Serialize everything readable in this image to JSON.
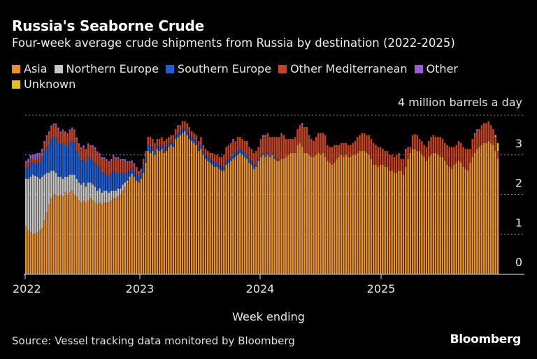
{
  "chart_data": {
    "type": "bar",
    "stacked": true,
    "title": "Russia's Seaborne Crude",
    "subtitle": "Four-week average crude shipments from Russia by destination (2022-2025)",
    "xlabel": "Week ending",
    "ylabel": "4 million barrels a day",
    "ylim": [
      0,
      4
    ],
    "yticks": [
      "0",
      "1",
      "2",
      "3"
    ],
    "xticks": [
      "2022",
      "2023",
      "2024",
      "2025"
    ],
    "grid": true,
    "legend_position": "top-left",
    "series": [
      {
        "name": "Asia",
        "color": "#e8922a",
        "values": [
          1.2,
          1.1,
          1.05,
          1.0,
          1.02,
          1.05,
          1.1,
          1.15,
          1.35,
          1.55,
          1.75,
          1.9,
          2.0,
          2.0,
          1.95,
          2.0,
          1.95,
          2.05,
          2.0,
          2.05,
          2.1,
          2.0,
          1.95,
          1.85,
          1.8,
          1.85,
          1.8,
          1.85,
          1.9,
          1.85,
          1.8,
          1.75,
          1.8,
          1.75,
          1.8,
          1.8,
          1.8,
          1.85,
          1.9,
          1.9,
          1.95,
          2.0,
          2.1,
          2.2,
          2.3,
          2.4,
          2.5,
          2.45,
          2.35,
          2.3,
          2.4,
          2.55,
          2.8,
          3.1,
          3.05,
          3.1,
          3.0,
          3.15,
          3.1,
          3.15,
          3.05,
          3.1,
          3.2,
          3.25,
          3.2,
          3.4,
          3.45,
          3.5,
          3.55,
          3.6,
          3.5,
          3.4,
          3.35,
          3.3,
          3.25,
          3.1,
          3.15,
          3.0,
          2.9,
          2.85,
          2.8,
          2.75,
          2.7,
          2.7,
          2.65,
          2.6,
          2.6,
          2.75,
          2.8,
          2.85,
          2.9,
          2.95,
          3.0,
          3.05,
          3.0,
          2.95,
          2.9,
          2.8,
          2.75,
          2.65,
          2.7,
          2.85,
          2.95,
          3.0,
          2.95,
          3.0,
          2.95,
          3.0,
          2.9,
          2.85,
          2.85,
          2.9,
          2.9,
          2.95,
          3.0,
          3.05,
          3.05,
          3.05,
          3.25,
          3.3,
          3.2,
          3.05,
          3.05,
          3.0,
          2.95,
          2.95,
          3.0,
          3.05,
          3.0,
          3.05,
          2.95,
          2.85,
          2.8,
          2.75,
          2.8,
          2.9,
          2.95,
          3.0,
          2.95,
          3.0,
          2.95,
          2.95,
          3.0,
          3.0,
          3.05,
          3.1,
          3.1,
          3.1,
          3.05,
          3.0,
          2.9,
          2.75,
          2.75,
          2.7,
          2.75,
          2.75,
          2.7,
          2.7,
          2.6,
          2.6,
          2.55,
          2.55,
          2.6,
          2.6,
          2.5,
          2.7,
          2.9,
          3.05,
          3.15,
          3.15,
          3.1,
          3.1,
          3.0,
          2.95,
          2.85,
          2.95,
          3.0,
          3.05,
          3.05,
          3.0,
          2.95,
          2.95,
          2.85,
          2.75,
          2.7,
          2.65,
          2.75,
          2.8,
          2.85,
          2.8,
          2.7,
          2.65,
          2.6,
          2.8,
          2.95,
          3.05,
          3.15,
          3.2,
          3.25,
          3.3,
          3.3,
          3.35,
          3.3,
          3.25,
          3.1,
          2.9
        ]
      },
      {
        "name": "Northern Europe",
        "color": "#c8c8c8",
        "values": [
          1.2,
          1.3,
          1.4,
          1.5,
          1.45,
          1.4,
          1.3,
          1.3,
          1.15,
          1.0,
          0.8,
          0.7,
          0.6,
          0.55,
          0.5,
          0.45,
          0.45,
          0.4,
          0.45,
          0.45,
          0.4,
          0.5,
          0.45,
          0.45,
          0.45,
          0.45,
          0.4,
          0.45,
          0.4,
          0.4,
          0.4,
          0.35,
          0.35,
          0.3,
          0.3,
          0.3,
          0.25,
          0.25,
          0.2,
          0.2,
          0.2,
          0.15,
          0.15,
          0.1,
          0.05,
          0.05,
          0.02,
          0,
          0,
          0,
          0,
          0,
          0,
          0,
          0,
          0,
          0,
          0,
          0,
          0,
          0,
          0,
          0,
          0,
          0,
          0,
          0,
          0,
          0,
          0,
          0,
          0,
          0,
          0,
          0,
          0,
          0,
          0,
          0,
          0,
          0,
          0,
          0,
          0,
          0,
          0,
          0,
          0,
          0,
          0,
          0,
          0,
          0,
          0,
          0,
          0,
          0,
          0,
          0,
          0,
          0,
          0,
          0,
          0,
          0,
          0,
          0,
          0,
          0,
          0,
          0,
          0,
          0,
          0,
          0,
          0,
          0,
          0,
          0,
          0,
          0,
          0,
          0,
          0,
          0,
          0,
          0,
          0,
          0,
          0,
          0,
          0,
          0,
          0,
          0,
          0,
          0,
          0,
          0,
          0,
          0,
          0,
          0,
          0,
          0,
          0,
          0,
          0,
          0,
          0,
          0,
          0,
          0,
          0,
          0,
          0,
          0,
          0,
          0,
          0,
          0,
          0,
          0,
          0,
          0,
          0,
          0,
          0,
          0,
          0,
          0,
          0,
          0,
          0,
          0,
          0,
          0,
          0,
          0,
          0,
          0,
          0,
          0,
          0,
          0,
          0,
          0,
          0,
          0,
          0,
          0,
          0,
          0,
          0,
          0,
          0
        ]
      },
      {
        "name": "Southern Europe",
        "color": "#1a5fd6",
        "values": [
          0.25,
          0.3,
          0.35,
          0.3,
          0.3,
          0.35,
          0.4,
          0.5,
          0.6,
          0.65,
          0.7,
          0.8,
          0.85,
          0.9,
          0.85,
          0.8,
          0.9,
          0.8,
          0.75,
          0.8,
          0.85,
          0.8,
          0.7,
          0.65,
          0.6,
          0.6,
          0.6,
          0.65,
          0.6,
          0.6,
          0.6,
          0.6,
          0.55,
          0.5,
          0.45,
          0.4,
          0.4,
          0.45,
          0.5,
          0.45,
          0.4,
          0.35,
          0.3,
          0.25,
          0.2,
          0.15,
          0.15,
          0.15,
          0.15,
          0.15,
          0.15,
          0.2,
          0.15,
          0.15,
          0.15,
          0.1,
          0.1,
          0.1,
          0.1,
          0.1,
          0.1,
          0.1,
          0.1,
          0.1,
          0.1,
          0.1,
          0.1,
          0.1,
          0.1,
          0.1,
          0.1,
          0.1,
          0.1,
          0.1,
          0.1,
          0.1,
          0.1,
          0.1,
          0.1,
          0.1,
          0.1,
          0.1,
          0.1,
          0.1,
          0.1,
          0.1,
          0.1,
          0.1,
          0.1,
          0.1,
          0.1,
          0.1,
          0.1,
          0.1,
          0.1,
          0.1,
          0.1,
          0.1,
          0.1,
          0.1,
          0.1,
          0.05,
          0.05,
          0.05,
          0.05,
          0.05,
          0.05,
          0.05,
          0.05,
          0.05,
          0,
          0,
          0,
          0,
          0,
          0,
          0,
          0,
          0,
          0,
          0,
          0,
          0,
          0,
          0,
          0,
          0,
          0,
          0,
          0,
          0,
          0,
          0,
          0,
          0,
          0,
          0,
          0,
          0,
          0,
          0,
          0,
          0,
          0,
          0,
          0,
          0,
          0,
          0,
          0,
          0,
          0,
          0,
          0,
          0,
          0,
          0,
          0,
          0,
          0,
          0,
          0,
          0,
          0,
          0,
          0,
          0,
          0,
          0,
          0,
          0,
          0,
          0,
          0,
          0,
          0,
          0,
          0,
          0,
          0,
          0,
          0,
          0,
          0,
          0,
          0,
          0,
          0,
          0,
          0,
          0,
          0,
          0,
          0,
          0,
          0
        ]
      },
      {
        "name": "Other Mediterranean",
        "color": "#c4441e",
        "values": [
          0.15,
          0.1,
          0.1,
          0.1,
          0.1,
          0.1,
          0.15,
          0.15,
          0.2,
          0.25,
          0.3,
          0.3,
          0.3,
          0.3,
          0.35,
          0.3,
          0.3,
          0.3,
          0.3,
          0.3,
          0.3,
          0.3,
          0.3,
          0.3,
          0.3,
          0.3,
          0.3,
          0.3,
          0.3,
          0.35,
          0.35,
          0.35,
          0.3,
          0.35,
          0.35,
          0.35,
          0.35,
          0.3,
          0.35,
          0.35,
          0.35,
          0.35,
          0.3,
          0.3,
          0.25,
          0.2,
          0.15,
          0.15,
          0.15,
          0.1,
          0.1,
          0.15,
          0.15,
          0.2,
          0.25,
          0.2,
          0.2,
          0.15,
          0.2,
          0.2,
          0.2,
          0.2,
          0.15,
          0.15,
          0.2,
          0.15,
          0.15,
          0.15,
          0.2,
          0.15,
          0.2,
          0.2,
          0.15,
          0.15,
          0.15,
          0.15,
          0.2,
          0.15,
          0.15,
          0.15,
          0.15,
          0.2,
          0.2,
          0.2,
          0.2,
          0.25,
          0.3,
          0.35,
          0.35,
          0.35,
          0.35,
          0.3,
          0.35,
          0.3,
          0.3,
          0.3,
          0.35,
          0.3,
          0.3,
          0.3,
          0.3,
          0.3,
          0.4,
          0.4,
          0.45,
          0.5,
          0.45,
          0.4,
          0.5,
          0.55,
          0.6,
          0.65,
          0.6,
          0.45,
          0.4,
          0.35,
          0.35,
          0.4,
          0.4,
          0.45,
          0.55,
          0.65,
          0.65,
          0.5,
          0.45,
          0.4,
          0.45,
          0.5,
          0.55,
          0.5,
          0.55,
          0.4,
          0.4,
          0.45,
          0.45,
          0.35,
          0.3,
          0.3,
          0.35,
          0.3,
          0.3,
          0.3,
          0.3,
          0.35,
          0.4,
          0.4,
          0.45,
          0.45,
          0.45,
          0.5,
          0.5,
          0.55,
          0.5,
          0.5,
          0.45,
          0.4,
          0.4,
          0.4,
          0.4,
          0.4,
          0.4,
          0.45,
          0.45,
          0.3,
          0.4,
          0.4,
          0.3,
          0.15,
          0.35,
          0.37,
          0.4,
          0.3,
          0.35,
          0.3,
          0.35,
          0.4,
          0.45,
          0.45,
          0.4,
          0.45,
          0.5,
          0.45,
          0.45,
          0.5,
          0.5,
          0.55,
          0.45,
          0.45,
          0.5,
          0.5,
          0.5,
          0.5,
          0.55,
          0.35,
          0.45,
          0.45,
          0.45,
          0.45,
          0.5,
          0.5,
          0.5,
          0.5,
          0.45,
          0.4,
          0.35,
          0.2
        ]
      },
      {
        "name": "Other",
        "color": "#9a5ccf",
        "values": [
          0.05,
          0.1,
          0.1,
          0.1,
          0.15,
          0.15,
          0.1,
          0.05,
          0.05,
          0.05,
          0.04,
          0.04,
          0.04,
          0.04,
          0.04,
          0.04,
          0.04,
          0.04,
          0.04,
          0.04,
          0.04,
          0.04,
          0.04,
          0.04,
          0.04,
          0.04,
          0.04,
          0.04,
          0.04,
          0.04,
          0.04,
          0.04,
          0.04,
          0.04,
          0.04,
          0.04,
          0.04,
          0.04,
          0.04,
          0.04,
          0.04,
          0.04,
          0.04,
          0.04,
          0.04,
          0.04,
          0.04,
          0.04,
          0.04,
          0.04,
          0,
          0,
          0,
          0,
          0,
          0,
          0,
          0,
          0,
          0,
          0,
          0,
          0,
          0,
          0,
          0,
          0.05,
          0,
          0,
          0,
          0,
          0,
          0,
          0,
          0,
          0,
          0,
          0,
          0,
          0,
          0,
          0,
          0,
          0,
          0,
          0,
          0,
          0,
          0,
          0,
          0.05,
          0,
          0,
          0,
          0,
          0,
          0,
          0,
          0,
          0,
          0,
          0,
          0,
          0.05,
          0.05,
          0,
          0,
          0,
          0,
          0,
          0,
          0,
          0,
          0,
          0,
          0,
          0,
          0,
          0,
          0,
          0.05,
          0,
          0,
          0,
          0,
          0,
          0,
          0,
          0,
          0,
          0,
          0,
          0,
          0,
          0,
          0,
          0,
          0,
          0,
          0,
          0,
          0,
          0,
          0,
          0,
          0,
          0,
          0,
          0,
          0,
          0,
          0,
          0,
          0,
          0,
          0,
          0,
          0,
          0,
          0,
          0,
          0,
          0,
          0,
          0,
          0.05,
          0,
          0,
          0,
          0,
          0,
          0,
          0,
          0,
          0,
          0,
          0,
          0,
          0,
          0,
          0,
          0,
          0,
          0,
          0,
          0,
          0,
          0,
          0,
          0,
          0,
          0,
          0,
          0,
          0,
          0.05,
          0.05,
          0,
          0,
          0,
          0,
          0,
          0,
          0,
          0,
          0
        ]
      },
      {
        "name": "Unknown",
        "color": "#e0c010",
        "values": [
          0,
          0,
          0,
          0,
          0,
          0,
          0,
          0,
          0,
          0,
          0,
          0,
          0,
          0,
          0,
          0,
          0,
          0,
          0,
          0,
          0,
          0,
          0,
          0,
          0,
          0,
          0,
          0,
          0,
          0,
          0,
          0,
          0,
          0,
          0,
          0,
          0,
          0,
          0,
          0,
          0,
          0,
          0,
          0,
          0,
          0,
          0,
          0,
          0,
          0,
          0,
          0,
          0,
          0,
          0,
          0,
          0,
          0,
          0,
          0,
          0,
          0,
          0,
          0,
          0,
          0,
          0,
          0,
          0,
          0,
          0,
          0,
          0,
          0,
          0,
          0,
          0,
          0,
          0,
          0,
          0,
          0,
          0,
          0,
          0,
          0,
          0,
          0,
          0,
          0,
          0,
          0,
          0,
          0,
          0,
          0,
          0,
          0,
          0,
          0,
          0,
          0,
          0,
          0,
          0,
          0,
          0,
          0,
          0,
          0,
          0,
          0,
          0,
          0,
          0,
          0,
          0,
          0,
          0,
          0,
          0,
          0,
          0,
          0,
          0,
          0,
          0,
          0,
          0,
          0,
          0,
          0,
          0,
          0,
          0,
          0,
          0,
          0,
          0,
          0,
          0,
          0,
          0,
          0,
          0,
          0,
          0,
          0,
          0,
          0,
          0,
          0,
          0,
          0,
          0,
          0,
          0,
          0,
          0,
          0,
          0,
          0,
          0,
          0,
          0,
          0,
          0,
          0,
          0,
          0,
          0,
          0,
          0,
          0,
          0,
          0,
          0,
          0,
          0,
          0,
          0,
          0,
          0,
          0,
          0,
          0,
          0,
          0,
          0,
          0,
          0,
          0,
          0,
          0,
          0,
          0,
          0,
          0,
          0,
          0,
          0,
          0,
          0,
          0,
          0.05,
          0.2
        ]
      }
    ]
  },
  "source": "Source: Vessel tracking data monitored by Bloomberg",
  "logo": "Bloomberg"
}
